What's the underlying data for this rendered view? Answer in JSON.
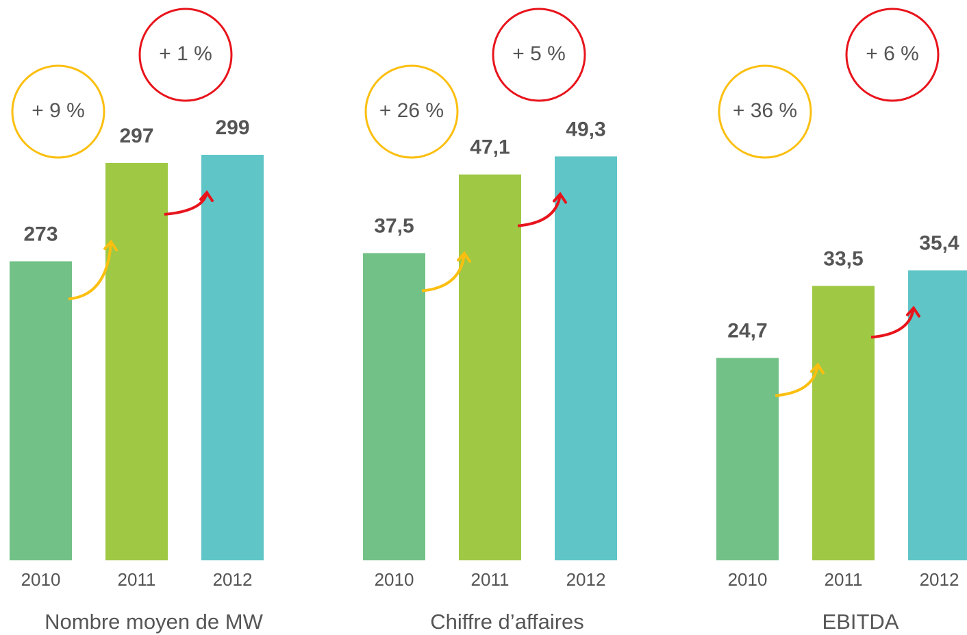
{
  "chart_data": [
    {
      "type": "bar",
      "title": "Nombre moyen de MW",
      "categories": [
        "2010",
        "2011",
        "2012"
      ],
      "values": [
        273,
        297,
        299
      ],
      "value_labels": [
        "273",
        "297",
        "299"
      ],
      "colors": [
        "#72c186",
        "#9fc844",
        "#5fc5c6"
      ],
      "ylim": [
        200,
        300
      ],
      "annotations": [
        {
          "text": "+ 9 %",
          "color": "#fbbf10"
        },
        {
          "text": "+ 1 %",
          "color": "#e8141c"
        }
      ]
    },
    {
      "type": "bar",
      "title": "Chiffre d’affaires",
      "categories": [
        "2010",
        "2011",
        "2012"
      ],
      "values": [
        37.5,
        47.1,
        49.3
      ],
      "value_labels": [
        "37,5",
        "47,1",
        "49,3"
      ],
      "colors": [
        "#72c186",
        "#9fc844",
        "#5fc5c6"
      ],
      "ylim": [
        0,
        50
      ],
      "annotations": [
        {
          "text": "+ 26 %",
          "color": "#fbbf10"
        },
        {
          "text": "+ 5 %",
          "color": "#e8141c"
        }
      ]
    },
    {
      "type": "bar",
      "title": "EBITDA",
      "categories": [
        "2010",
        "2011",
        "2012"
      ],
      "values": [
        24.7,
        33.5,
        35.4
      ],
      "value_labels": [
        "24,7",
        "33,5",
        "35,4"
      ],
      "colors": [
        "#72c186",
        "#9fc844",
        "#5fc5c6"
      ],
      "ylim": [
        0,
        50
      ],
      "annotations": [
        {
          "text": "+ 36 %",
          "color": "#fbbf10"
        },
        {
          "text": "+ 6 %",
          "color": "#e8141c"
        }
      ]
    }
  ]
}
